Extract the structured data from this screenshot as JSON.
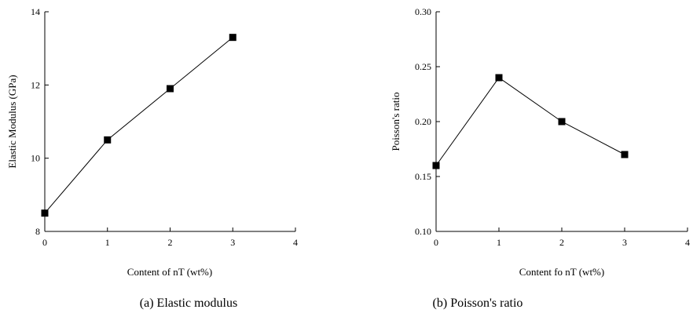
{
  "chart_data": [
    {
      "type": "line",
      "caption": "(a) Elastic modulus",
      "xlabel": "Content of nT (wt%)",
      "ylabel": "Elastic Modulus (GPa)",
      "xlim": [
        0,
        4
      ],
      "ylim": [
        8,
        14
      ],
      "xticks": [
        "0",
        "1",
        "2",
        "3",
        "4"
      ],
      "yticks": [
        "8",
        "10",
        "12",
        "14"
      ],
      "grid": false,
      "marker": "square",
      "series": [
        {
          "x": [
            0,
            1,
            2,
            3
          ],
          "values": [
            8.5,
            10.5,
            11.9,
            13.3
          ]
        }
      ]
    },
    {
      "type": "line",
      "caption": "(b) Poisson's ratio",
      "xlabel": "Content fo nT (wt%)",
      "ylabel": "Poisson's ratio",
      "xlim": [
        0,
        4
      ],
      "ylim": [
        0.1,
        0.3
      ],
      "xticks": [
        "0",
        "1",
        "2",
        "3",
        "4"
      ],
      "yticks": [
        "0.10",
        "0.15",
        "0.20",
        "0.25",
        "0.30"
      ],
      "grid": false,
      "marker": "square",
      "series": [
        {
          "x": [
            0,
            1,
            2,
            3
          ],
          "values": [
            0.16,
            0.24,
            0.2,
            0.17
          ]
        }
      ]
    }
  ]
}
